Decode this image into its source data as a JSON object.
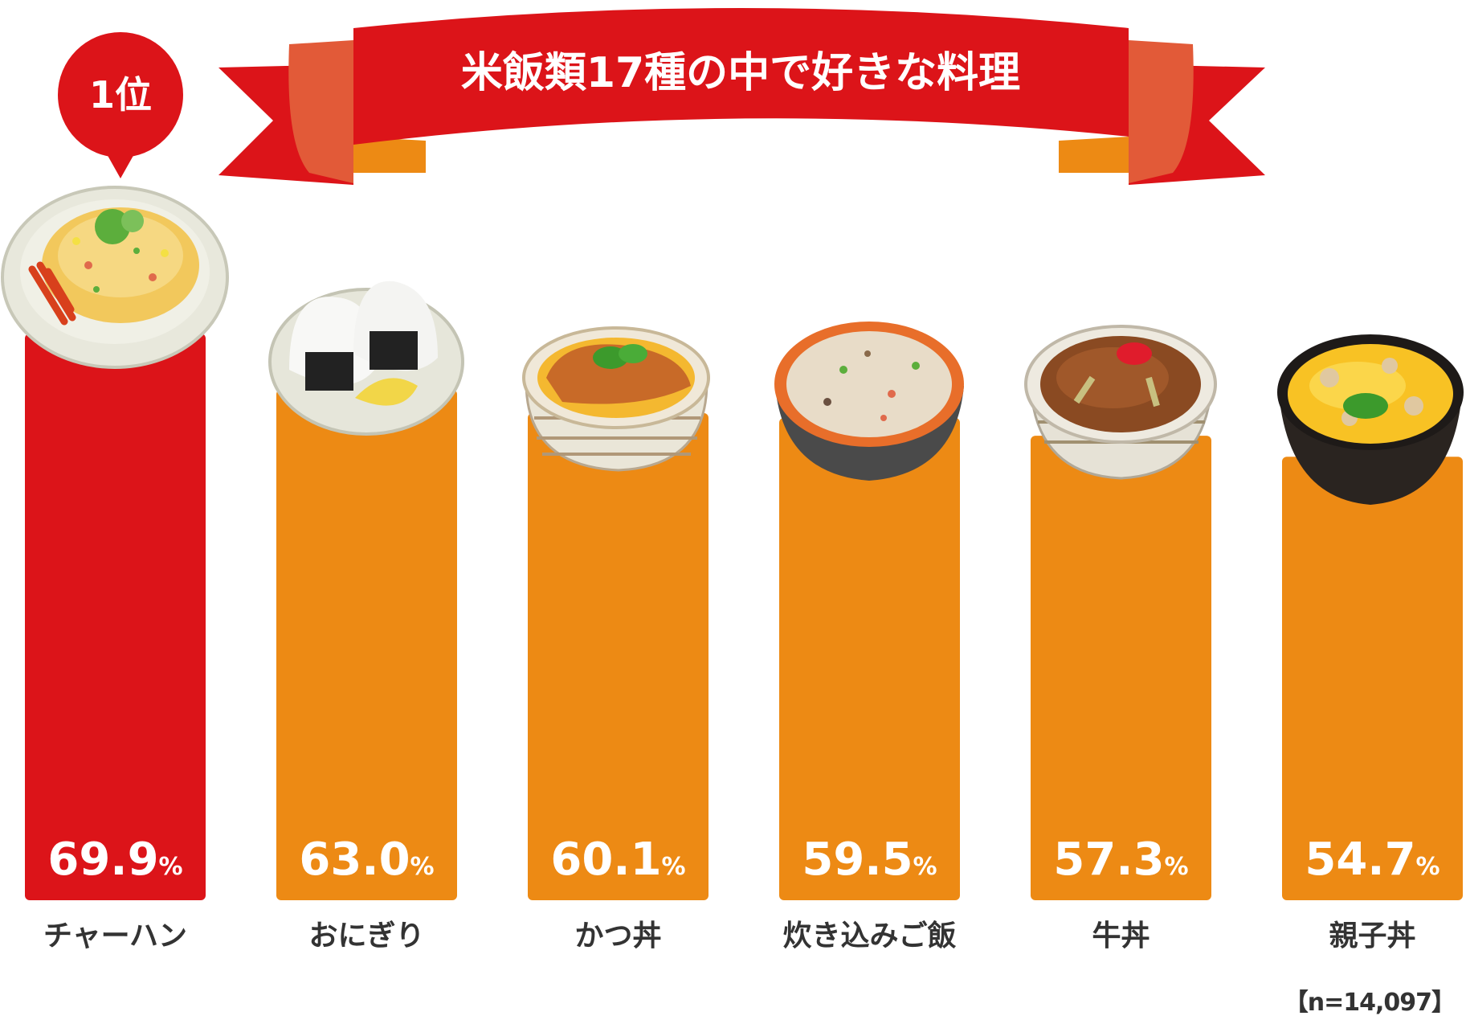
{
  "title": "米飯類17種の中で好きな料理",
  "rank_badge": "1位",
  "sample_note": "【n=14,097】",
  "colors": {
    "top_bar": "#dc1419",
    "bar": "#ed8a14",
    "ribbon": "#dc1419",
    "ribbon_tail": "#e25a38",
    "value_text": "#ffffff",
    "label_text": "#333333"
  },
  "chart_data": {
    "type": "bar",
    "title": "米飯類17種の中で好きな料理",
    "unit": "%",
    "categories": [
      "チャーハン",
      "おにぎり",
      "かつ丼",
      "炊き込みご飯",
      "牛丼",
      "親子丼"
    ],
    "values": [
      69.9,
      63.0,
      60.1,
      59.5,
      57.3,
      54.7
    ],
    "value_labels": [
      "69.9",
      "63.0",
      "60.1",
      "59.5",
      "57.3",
      "54.7"
    ],
    "highlight_index": 0,
    "ylim": [
      0,
      70
    ],
    "grid": false,
    "legend": "none"
  },
  "dish_icons": [
    "fried-rice-plate-icon",
    "onigiri-plate-icon",
    "katsudon-bowl-icon",
    "takikomi-gohan-bowl-icon",
    "gyudon-bowl-icon",
    "oyakodon-bowl-icon"
  ]
}
